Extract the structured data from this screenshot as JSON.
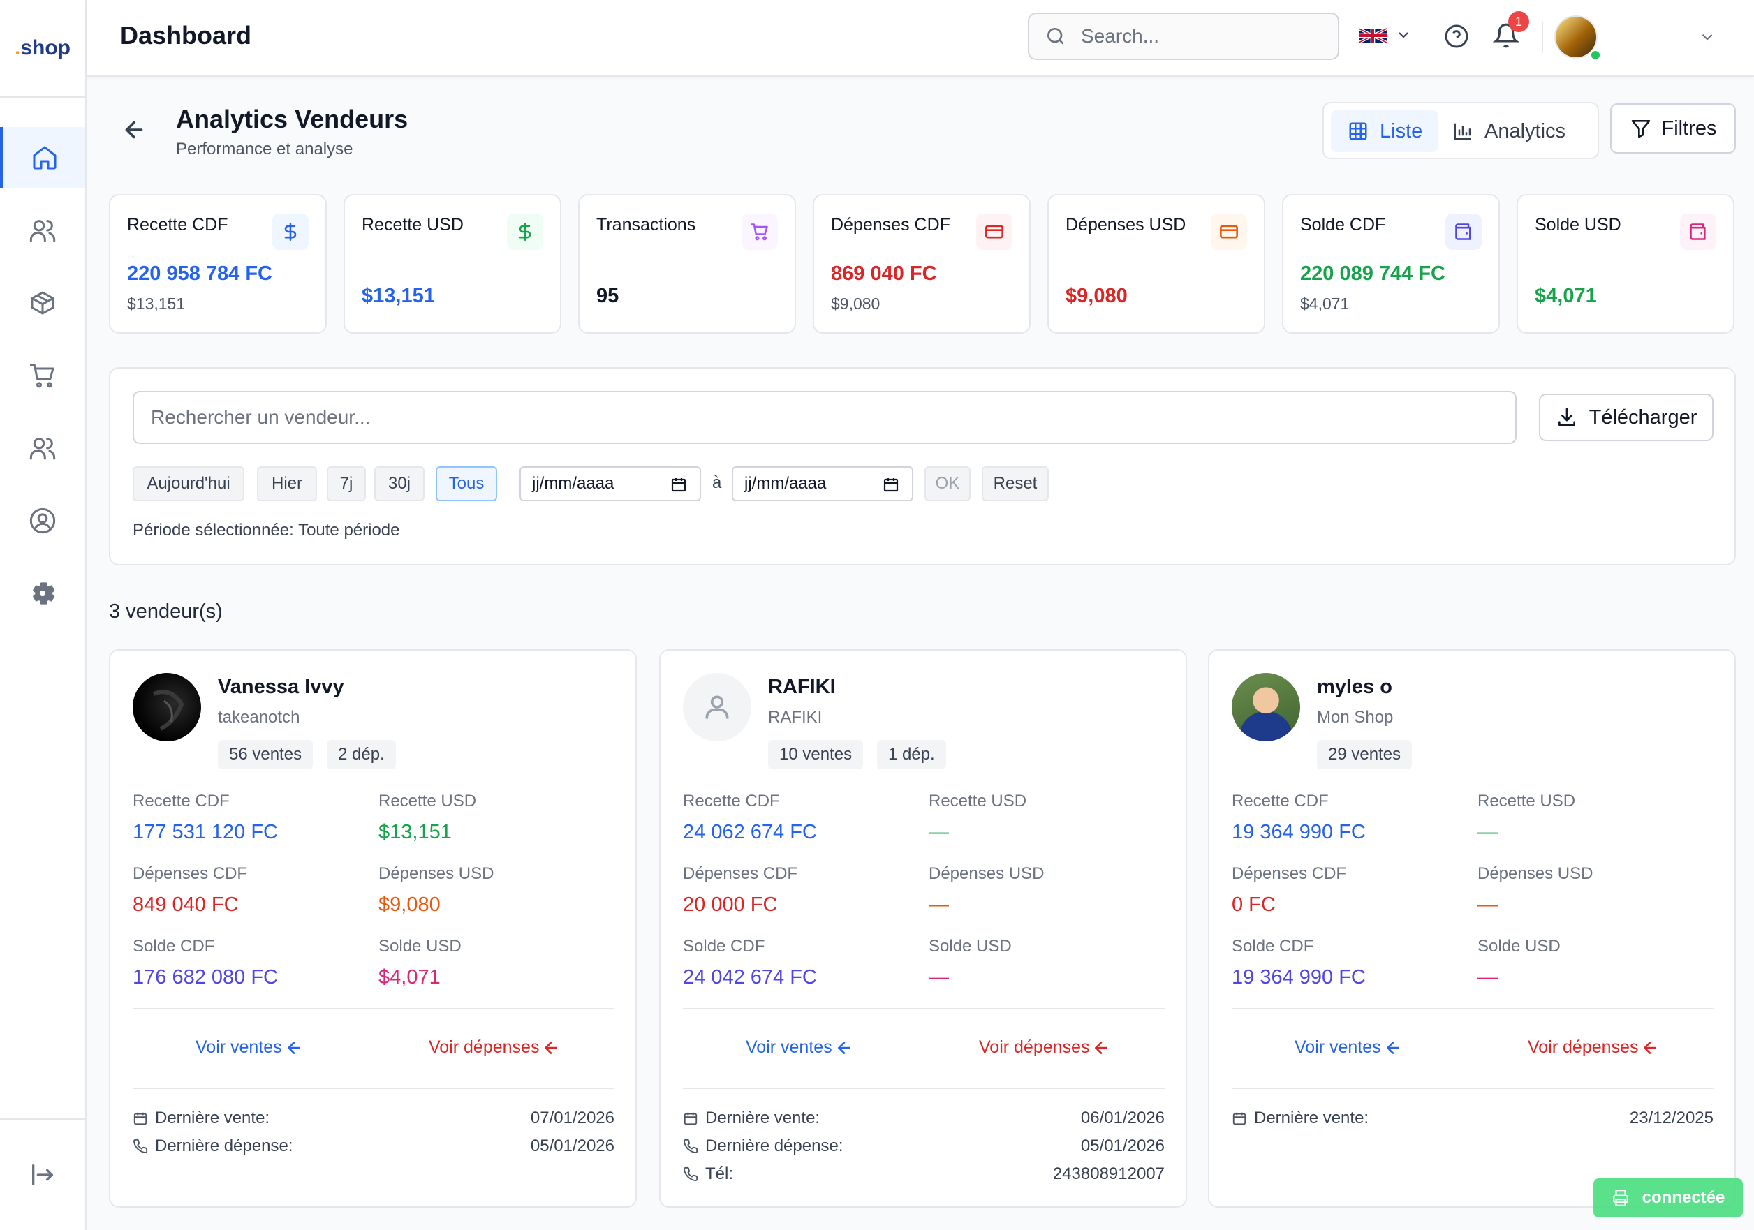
{
  "app": {
    "logo_dot": ".",
    "logo_text": "shop",
    "header_title": "Dashboard"
  },
  "header": {
    "search_placeholder": "Search...",
    "notification_count": "1",
    "language_icon": "uk-flag"
  },
  "sidebar": {
    "items": [
      {
        "name": "home-icon",
        "active": true
      },
      {
        "name": "users-icon"
      },
      {
        "name": "package-icon"
      },
      {
        "name": "cart-icon"
      },
      {
        "name": "team-icon"
      },
      {
        "name": "profile-icon"
      },
      {
        "name": "settings-icon"
      }
    ],
    "logout_icon": "logout-icon"
  },
  "page": {
    "title": "Analytics Vendeurs",
    "subtitle": "Performance et analyse",
    "view_liste": "Liste",
    "view_analytics": "Analytics",
    "filters_label": "Filtres"
  },
  "stats": [
    {
      "label": "Recette CDF",
      "value": "220 958 784 FC",
      "secondary": "$13,151",
      "color": "#2563eb",
      "icon": "dollar-icon"
    },
    {
      "label": "Recette USD",
      "value": "$13,151",
      "color": "#2563eb",
      "icon": "dollar-icon"
    },
    {
      "label": "Transactions",
      "value": "95",
      "color": "#111827",
      "icon": "cart-icon"
    },
    {
      "label": "Dépenses CDF",
      "value": "869 040 FC",
      "secondary": "$9,080",
      "color": "#dc2626",
      "icon": "credit-card-icon"
    },
    {
      "label": "Dépenses USD",
      "value": "$9,080",
      "color": "#dc2626",
      "icon": "credit-card-icon"
    },
    {
      "label": "Solde CDF",
      "value": "220 089 744 FC",
      "secondary": "$4,071",
      "color": "#16a34a",
      "icon": "wallet-icon"
    },
    {
      "label": "Solde USD",
      "value": "$4,071",
      "color": "#16a34a",
      "icon": "wallet-icon"
    }
  ],
  "filters": {
    "search_placeholder": "Rechercher un vendeur...",
    "download_label": "Télécharger",
    "presets": [
      "Aujourd'hui",
      "Hier",
      "7j",
      "30j",
      "Tous"
    ],
    "active_preset": "Tous",
    "date_from": "jj/mm/aaaa",
    "date_sep": "à",
    "date_to": "jj/mm/aaaa",
    "ok_label": "OK",
    "reset_label": "Reset",
    "period_label": "Période sélectionnée:",
    "period_value": "Toute période"
  },
  "vendors_count": "3 vendeur(s)",
  "labels": {
    "recette_cdf": "Recette CDF",
    "recette_usd": "Recette USD",
    "depenses_cdf": "Dépenses CDF",
    "depenses_usd": "Dépenses USD",
    "solde_cdf": "Solde CDF",
    "solde_usd": "Solde USD",
    "voir_ventes": "Voir ventes",
    "voir_depenses": "Voir dépenses",
    "derniere_vente": "Dernière vente:",
    "derniere_depense": "Dernière dépense:",
    "tel": "Tél:"
  },
  "vendors": [
    {
      "name": "Vanessa Ivvy",
      "shop": "takeanotch",
      "badges": [
        "56 ventes",
        "2 dép."
      ],
      "recette_cdf": "177 531 120 FC",
      "recette_usd": "$13,151",
      "depenses_cdf": "849 040 FC",
      "depenses_usd": "$9,080",
      "solde_cdf": "176 682 080 FC",
      "solde_usd": "$4,071",
      "derniere_vente": "07/01/2026",
      "derniere_depense": "05/01/2026"
    },
    {
      "name": "RAFIKI",
      "shop": "RAFIKI",
      "badges": [
        "10 ventes",
        "1 dép."
      ],
      "recette_cdf": "24 062 674 FC",
      "recette_usd": "—",
      "depenses_cdf": "20 000 FC",
      "depenses_usd": "—",
      "solde_cdf": "24 042 674 FC",
      "solde_usd": "—",
      "derniere_vente": "06/01/2026",
      "derniere_depense": "05/01/2026",
      "tel": "243808912007"
    },
    {
      "name": "myles o",
      "shop": "Mon Shop",
      "badges": [
        "29 ventes"
      ],
      "recette_cdf": "19 364 990 FC",
      "recette_usd": "—",
      "depenses_cdf": "0 FC",
      "depenses_usd": "—",
      "solde_cdf": "19 364 990 FC",
      "solde_usd": "—",
      "derniere_vente": "23/12/2025"
    }
  ],
  "status_toast": "connectée"
}
